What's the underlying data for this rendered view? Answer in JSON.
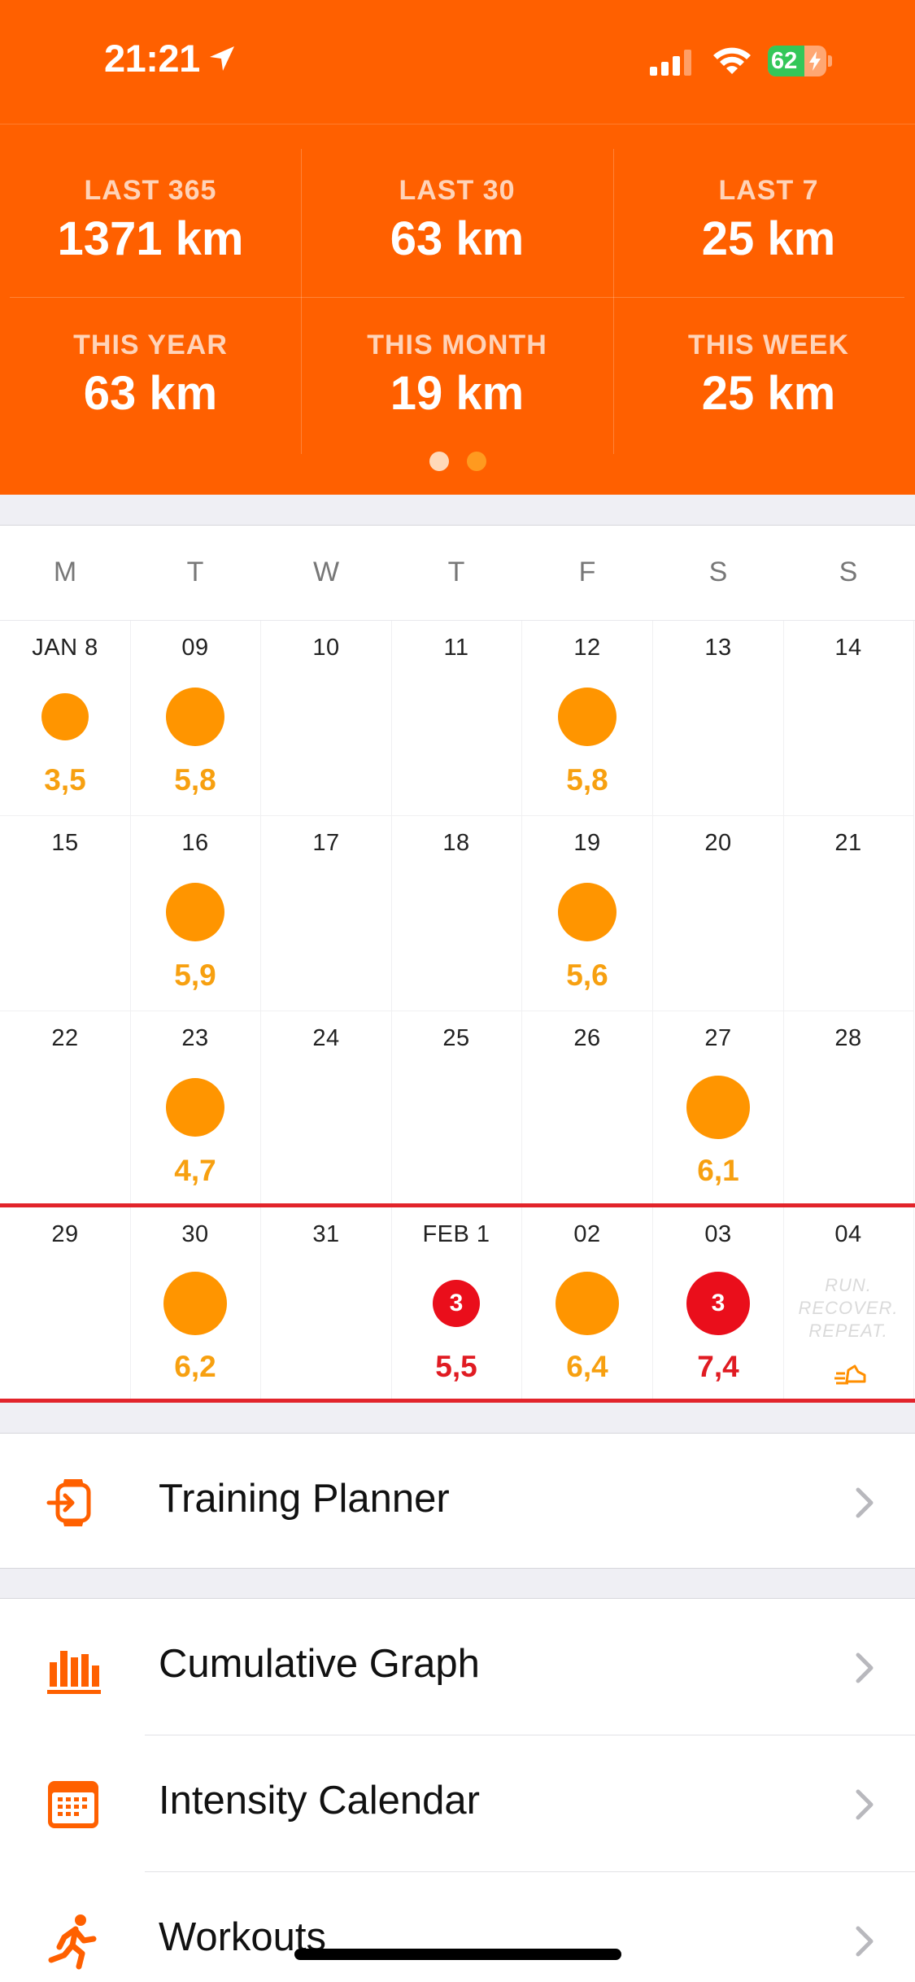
{
  "status_bar": {
    "time": "21:21",
    "battery_percent": "62",
    "battery_level": 0.62
  },
  "stats": {
    "items": [
      {
        "label": "LAST 365",
        "value": "1371 km"
      },
      {
        "label": "LAST 30",
        "value": "63 km"
      },
      {
        "label": "LAST 7",
        "value": "25 km"
      },
      {
        "label": "THIS YEAR",
        "value": "63 km"
      },
      {
        "label": "THIS MONTH",
        "value": "19 km"
      },
      {
        "label": "THIS WEEK",
        "value": "25 km"
      }
    ],
    "page_count": 2,
    "active_page": 1
  },
  "calendar": {
    "weekdays": [
      "M",
      "T",
      "W",
      "T",
      "F",
      "S",
      "S"
    ],
    "weeks": [
      [
        {
          "date": "JAN 8",
          "distance": "3,5",
          "intensity": "small"
        },
        {
          "date": "09",
          "distance": "5,8",
          "intensity": "medium"
        },
        {
          "date": "10"
        },
        {
          "date": "11"
        },
        {
          "date": "12",
          "distance": "5,8",
          "intensity": "medium"
        },
        {
          "date": "13"
        },
        {
          "date": "14"
        }
      ],
      [
        {
          "date": "15"
        },
        {
          "date": "16",
          "distance": "5,9",
          "intensity": "medium"
        },
        {
          "date": "17"
        },
        {
          "date": "18"
        },
        {
          "date": "19",
          "distance": "5,6",
          "intensity": "medium"
        },
        {
          "date": "20"
        },
        {
          "date": "21"
        }
      ],
      [
        {
          "date": "22"
        },
        {
          "date": "23",
          "distance": "4,7",
          "intensity": "medium"
        },
        {
          "date": "24"
        },
        {
          "date": "25"
        },
        {
          "date": "26"
        },
        {
          "date": "27",
          "distance": "6,1",
          "intensity": "large"
        },
        {
          "date": "28"
        }
      ],
      [
        {
          "date": "29"
        },
        {
          "date": "30",
          "distance": "6,2",
          "intensity": "large"
        },
        {
          "date": "31"
        },
        {
          "date": "FEB 1",
          "distance": "5,5",
          "intensity": "small",
          "alert": "3"
        },
        {
          "date": "02",
          "distance": "6,4",
          "intensity": "large"
        },
        {
          "date": "03",
          "distance": "7,4",
          "intensity": "large",
          "alert": "3"
        },
        {
          "date": "04",
          "note": [
            "RUN.",
            "RECOVER.",
            "REPEAT."
          ]
        }
      ]
    ],
    "colors": {
      "run": "#ff9500",
      "alert": "#ea0e1b",
      "current_week_border": "#e2242b"
    }
  },
  "menu": {
    "training_planner": "Training Planner",
    "cumulative_graph": "Cumulative Graph",
    "intensity_calendar": "Intensity Calendar",
    "workouts": "Workouts"
  },
  "colors": {
    "accent": "#ff6000"
  }
}
